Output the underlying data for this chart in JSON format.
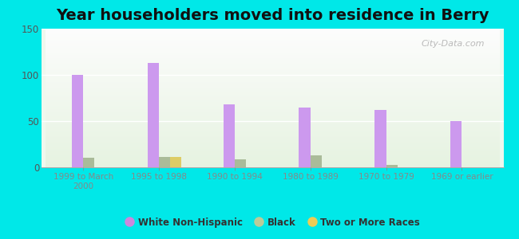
{
  "title": "Year householders moved into residence in Berry",
  "categories": [
    "1999 to March\n2000",
    "1995 to 1998",
    "1990 to 1994",
    "1980 to 1989",
    "1970 to 1979",
    "1969 or earlier"
  ],
  "white_non_hispanic": [
    100,
    113,
    68,
    65,
    62,
    50
  ],
  "black": [
    10,
    11,
    9,
    13,
    3,
    0
  ],
  "two_or_more_races": [
    0,
    11,
    0,
    0,
    0,
    0
  ],
  "bar_colors": {
    "white_non_hispanic": "#cc99ee",
    "black": "#aabb99",
    "two_or_more_races": "#ddcc66"
  },
  "legend_colors": {
    "white_non_hispanic": "#cc88dd",
    "black": "#bbcc99",
    "two_or_more_races": "#eecc55"
  },
  "background_color": "#00e8e8",
  "ylim": [
    0,
    150
  ],
  "yticks": [
    0,
    50,
    100,
    150
  ],
  "bar_width": 0.15,
  "title_fontsize": 14,
  "watermark": "City-Data.com"
}
